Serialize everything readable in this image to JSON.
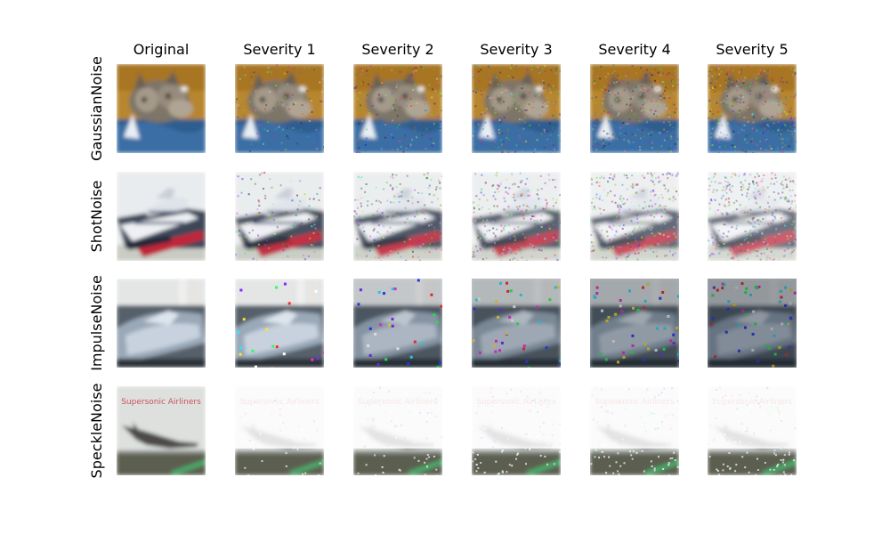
{
  "columns": [
    "Original",
    "Severity 1",
    "Severity 2",
    "Severity 3",
    "Severity 4",
    "Severity 5"
  ],
  "rows": [
    {
      "label": "GaussianNoise",
      "scene": "cat"
    },
    {
      "label": "ShotNoise",
      "scene": "ship"
    },
    {
      "label": "ImpulseNoise",
      "scene": "boat"
    },
    {
      "label": "SpeckleNoise",
      "scene": "plane"
    }
  ],
  "scene_text": {
    "plane_title": "Supersonic Airliners"
  }
}
